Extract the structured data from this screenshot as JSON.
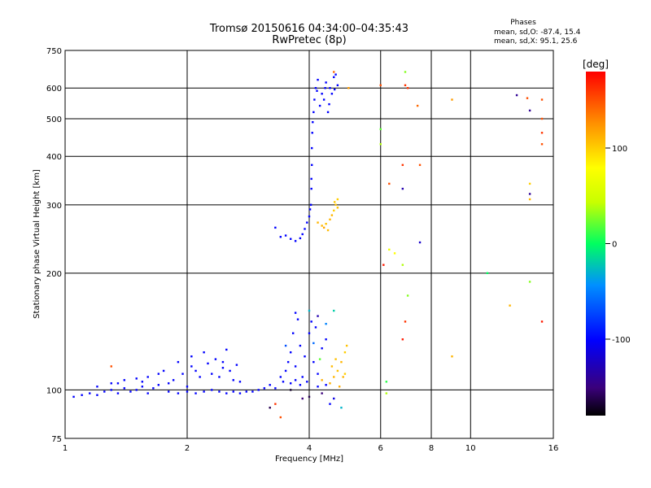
{
  "chart_data": {
    "type": "scatter",
    "title": "Tromsø 20150616 04:34:00–04:35:43",
    "subtitle": "RwPretec (8p)",
    "xlabel": "Frequency [MHz]",
    "ylabel": "Stationary phase Virtual Height [km]",
    "x_scale": "log2",
    "y_scale": "log",
    "xlim": [
      1,
      16
    ],
    "ylim": [
      75,
      750
    ],
    "grid": true,
    "x_ticks": [
      {
        "value": 1,
        "label": "1"
      },
      {
        "value": 2,
        "label": "2"
      },
      {
        "value": 4,
        "label": "4"
      },
      {
        "value": 6,
        "label": "6"
      },
      {
        "value": 8,
        "label": "8"
      },
      {
        "value": 10,
        "label": "10"
      },
      {
        "value": 16,
        "label": "16"
      }
    ],
    "y_ticks": [
      {
        "value": 75,
        "label": "75"
      },
      {
        "value": 100,
        "label": "100"
      },
      {
        "value": 200,
        "label": "200"
      },
      {
        "value": 300,
        "label": "300"
      },
      {
        "value": 400,
        "label": "400"
      },
      {
        "value": 500,
        "label": "500"
      },
      {
        "value": 600,
        "label": "600"
      },
      {
        "value": 750,
        "label": "750"
      }
    ],
    "phase_info": {
      "heading": "Phases",
      "line_o": "mean, sd,O: -87.4, 15.4",
      "line_x": "mean, sd,X:  95.1, 25.6"
    },
    "colorbar": {
      "label": "[deg]",
      "range": [
        -180,
        180
      ],
      "ticks": [
        {
          "value": 100,
          "label": "100"
        },
        {
          "value": 0,
          "label": "0"
        },
        {
          "value": -100,
          "label": "-100"
        }
      ]
    },
    "series": [
      {
        "points": [
          [
            1.05,
            96,
            -100
          ],
          [
            1.1,
            97,
            -100
          ],
          [
            1.15,
            98,
            -100
          ],
          [
            1.2,
            97,
            -100
          ],
          [
            1.25,
            99,
            -100
          ],
          [
            1.3,
            100,
            -100
          ],
          [
            1.35,
            98,
            -100
          ],
          [
            1.4,
            101,
            -100
          ],
          [
            1.45,
            99,
            -100
          ],
          [
            1.5,
            100,
            -100
          ],
          [
            1.55,
            102,
            -100
          ],
          [
            1.6,
            98,
            -100
          ],
          [
            1.65,
            101,
            -100
          ],
          [
            1.7,
            103,
            -100
          ],
          [
            1.8,
            99,
            -100
          ],
          [
            1.9,
            98,
            -100
          ],
          [
            2.0,
            99,
            -100
          ],
          [
            2.1,
            98,
            -100
          ],
          [
            2.2,
            99,
            -100
          ],
          [
            2.3,
            100,
            -100
          ],
          [
            2.4,
            99,
            -100
          ],
          [
            2.5,
            98,
            -100
          ],
          [
            2.6,
            99,
            -100
          ],
          [
            2.7,
            98,
            -100
          ],
          [
            2.8,
            99,
            -100
          ],
          [
            2.9,
            99,
            -100
          ],
          [
            3.0,
            100,
            -100
          ],
          [
            3.1,
            101,
            -100
          ],
          [
            3.2,
            103,
            -100
          ],
          [
            3.3,
            101,
            -100
          ],
          [
            1.4,
            106,
            -100
          ],
          [
            1.6,
            108,
            -100
          ],
          [
            1.75,
            112,
            -100
          ],
          [
            1.85,
            106,
            -100
          ],
          [
            1.95,
            110,
            -100
          ],
          [
            2.05,
            115,
            -100
          ],
          [
            2.15,
            108,
            -100
          ],
          [
            2.25,
            117,
            -100
          ],
          [
            2.35,
            120,
            -100
          ],
          [
            2.45,
            114,
            -100
          ],
          [
            2.55,
            112,
            -100
          ],
          [
            2.7,
            105,
            -100
          ],
          [
            1.9,
            118,
            -100
          ],
          [
            2.05,
            122,
            -100
          ],
          [
            2.2,
            125,
            -100
          ],
          [
            2.45,
            118,
            -100
          ],
          [
            2.5,
            127,
            -100
          ],
          [
            2.65,
            116,
            -100
          ],
          [
            1.35,
            104,
            -100
          ],
          [
            1.5,
            107,
            -100
          ],
          [
            1.7,
            110,
            -100
          ],
          [
            1.8,
            104,
            -100
          ],
          [
            2.3,
            110,
            -100
          ],
          [
            2.6,
            106,
            -100
          ],
          [
            1.2,
            102,
            -100
          ],
          [
            1.3,
            104,
            -100
          ],
          [
            1.55,
            105,
            -100
          ],
          [
            2.1,
            112,
            -100
          ],
          [
            2.4,
            108,
            -100
          ],
          [
            2.0,
            102,
            -100
          ],
          [
            3.4,
            108,
            -100
          ],
          [
            3.5,
            112,
            -100
          ],
          [
            3.55,
            118,
            -100
          ],
          [
            3.6,
            125,
            -100
          ],
          [
            3.7,
            115,
            -100
          ],
          [
            3.8,
            130,
            -100
          ],
          [
            3.9,
            122,
            -100
          ],
          [
            4.0,
            140,
            -100
          ],
          [
            4.1,
            118,
            -100
          ],
          [
            4.2,
            110,
            -100
          ],
          [
            4.3,
            128,
            -100
          ],
          [
            4.4,
            135,
            -100
          ],
          [
            3.65,
            140,
            -100
          ],
          [
            3.75,
            152,
            -100
          ],
          [
            3.85,
            108,
            -100
          ],
          [
            3.95,
            105,
            -100
          ],
          [
            4.05,
            150,
            -100
          ],
          [
            4.15,
            145,
            -100
          ],
          [
            3.45,
            105,
            -100
          ],
          [
            3.6,
            104,
            -100
          ],
          [
            3.7,
            106,
            -100
          ],
          [
            3.8,
            103,
            -100
          ],
          [
            4.2,
            102,
            -100
          ],
          [
            4.4,
            103,
            -100
          ],
          [
            3.5,
            130,
            -70
          ],
          [
            3.7,
            158,
            -100
          ],
          [
            4.0,
            160,
            -30
          ],
          [
            4.2,
            155,
            -130
          ],
          [
            4.4,
            148,
            -50
          ],
          [
            4.6,
            160,
            -20
          ],
          [
            4.3,
            98,
            -150
          ],
          [
            4.5,
            92,
            -100
          ],
          [
            4.6,
            95,
            -110
          ],
          [
            4.0,
            96,
            -160
          ],
          [
            3.6,
            100,
            -170
          ],
          [
            3.85,
            95,
            -150
          ],
          [
            3.5,
            250,
            -100
          ],
          [
            3.6,
            245,
            -100
          ],
          [
            3.7,
            242,
            -100
          ],
          [
            3.8,
            246,
            -100
          ],
          [
            3.85,
            252,
            -100
          ],
          [
            3.9,
            260,
            -100
          ],
          [
            3.95,
            270,
            -100
          ],
          [
            4.0,
            280,
            -100
          ],
          [
            4.02,
            292,
            -100
          ],
          [
            4.04,
            300,
            -100
          ],
          [
            3.3,
            262,
            -100
          ],
          [
            3.4,
            248,
            -100
          ],
          [
            4.05,
            330,
            -100
          ],
          [
            4.05,
            350,
            -100
          ],
          [
            4.06,
            380,
            -100
          ],
          [
            4.06,
            420,
            -100
          ],
          [
            4.07,
            460,
            -100
          ],
          [
            4.08,
            490,
            -100
          ],
          [
            4.1,
            520,
            -100
          ],
          [
            4.12,
            560,
            -100
          ],
          [
            4.15,
            600,
            -100
          ],
          [
            4.2,
            630,
            -100
          ],
          [
            4.3,
            580,
            -100
          ],
          [
            4.4,
            620,
            -100
          ],
          [
            4.5,
            600,
            -100
          ],
          [
            4.6,
            640,
            -100
          ],
          [
            4.7,
            610,
            -100
          ],
          [
            4.25,
            540,
            -100
          ],
          [
            4.35,
            560,
            -100
          ],
          [
            4.45,
            520,
            -100
          ],
          [
            4.55,
            580,
            -100
          ],
          [
            4.65,
            650,
            -100
          ],
          [
            4.18,
            590,
            -100
          ],
          [
            4.38,
            600,
            -100
          ],
          [
            4.48,
            545,
            -100
          ],
          [
            4.62,
            595,
            -100
          ],
          [
            4.3,
            265,
            110
          ],
          [
            4.4,
            268,
            105
          ],
          [
            4.5,
            275,
            110
          ],
          [
            4.6,
            290,
            100
          ],
          [
            4.65,
            300,
            105
          ],
          [
            4.7,
            310,
            100
          ],
          [
            4.35,
            262,
            115
          ],
          [
            4.55,
            282,
            110
          ],
          [
            4.7,
            295,
            105
          ],
          [
            4.2,
            270,
            110
          ],
          [
            4.45,
            258,
            108
          ],
          [
            4.62,
            305,
            102
          ],
          [
            4.6,
            108,
            110
          ],
          [
            4.7,
            112,
            105
          ],
          [
            4.8,
            118,
            110
          ],
          [
            4.9,
            125,
            100
          ],
          [
            4.95,
            130,
            105
          ],
          [
            4.5,
            104,
            112
          ],
          [
            4.75,
            102,
            115
          ],
          [
            4.85,
            108,
            110
          ],
          [
            4.65,
            120,
            105
          ],
          [
            4.55,
            115,
            108
          ],
          [
            4.9,
            110,
            100
          ],
          [
            4.3,
            106,
            112
          ],
          [
            1.3,
            115,
            150
          ],
          [
            3.3,
            92,
            160
          ],
          [
            3.2,
            90,
            -160
          ],
          [
            3.4,
            85,
            150
          ],
          [
            4.8,
            90,
            -30
          ],
          [
            4.6,
            660,
            140
          ],
          [
            5.0,
            600,
            120
          ],
          [
            6.0,
            610,
            150
          ],
          [
            6.0,
            470,
            20
          ],
          [
            6.0,
            430,
            40
          ],
          [
            6.1,
            210,
            170
          ],
          [
            6.3,
            230,
            70
          ],
          [
            6.3,
            340,
            150
          ],
          [
            6.9,
            660,
            30
          ],
          [
            6.9,
            610,
            160
          ],
          [
            7.0,
            600,
            160
          ],
          [
            6.8,
            380,
            160
          ],
          [
            6.8,
            330,
            -130
          ],
          [
            6.8,
            210,
            40
          ],
          [
            7.0,
            175,
            30
          ],
          [
            6.9,
            150,
            160
          ],
          [
            6.8,
            135,
            170
          ],
          [
            7.5,
            380,
            150
          ],
          [
            7.5,
            240,
            -120
          ],
          [
            7.4,
            540,
            140
          ],
          [
            9.0,
            560,
            120
          ],
          [
            11.0,
            200,
            0
          ],
          [
            13.0,
            575,
            -140
          ],
          [
            13.8,
            565,
            150
          ],
          [
            14.0,
            525,
            -140
          ],
          [
            14.0,
            340,
            100
          ],
          [
            14.0,
            320,
            -140
          ],
          [
            14.0,
            310,
            110
          ],
          [
            14.0,
            190,
            30
          ],
          [
            12.5,
            165,
            110
          ],
          [
            15.0,
            560,
            150
          ],
          [
            15.0,
            500,
            150
          ],
          [
            15.0,
            460,
            160
          ],
          [
            15.0,
            430,
            150
          ],
          [
            15.0,
            150,
            170
          ],
          [
            6.2,
            105,
            10
          ],
          [
            6.2,
            98,
            40
          ],
          [
            9.0,
            122,
            110
          ],
          [
            6.5,
            225,
            80
          ],
          [
            4.25,
            120,
            20
          ],
          [
            4.1,
            132,
            -60
          ]
        ]
      }
    ]
  }
}
